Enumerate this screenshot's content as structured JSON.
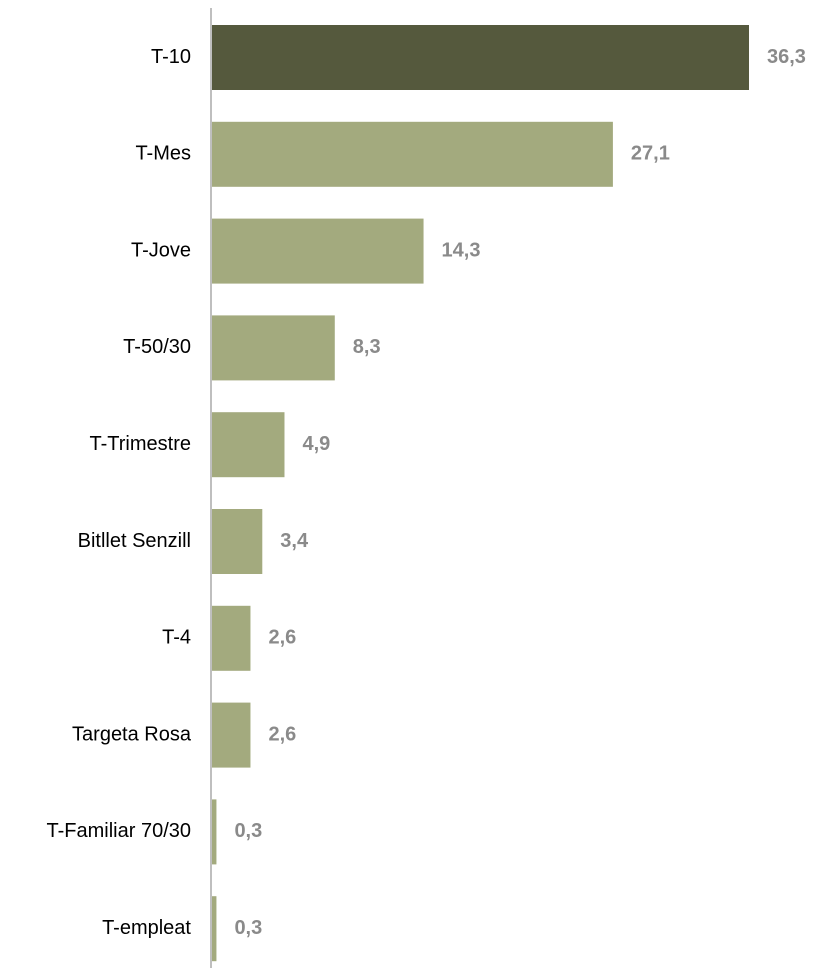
{
  "chart_data": {
    "type": "bar",
    "orientation": "horizontal",
    "categories": [
      "T-10",
      "T-Mes",
      "T-Jove",
      "T-50/30",
      "T-Trimestre",
      "Bitllet Senzill",
      "T-4",
      "Targeta Rosa",
      "T-Familiar 70/30",
      "T-empleat"
    ],
    "values": [
      36.3,
      27.1,
      14.3,
      8.3,
      4.9,
      3.4,
      2.6,
      2.6,
      0.3,
      0.3
    ],
    "value_labels": [
      "36,3",
      "27,1",
      "14,3",
      "8,3",
      "4,9",
      "3,4",
      "2,6",
      "2,6",
      "0,3",
      "0,3"
    ],
    "title": "",
    "xlabel": "",
    "ylabel": "",
    "xlim": [
      0,
      36.3
    ],
    "grid": false,
    "legend": "none",
    "colors": {
      "highlight_bar": "#55593d",
      "bar": "#a3aa7e",
      "axis": "#bfbfbf",
      "category_text": "#000000",
      "value_text": "#8a8a8a"
    }
  }
}
